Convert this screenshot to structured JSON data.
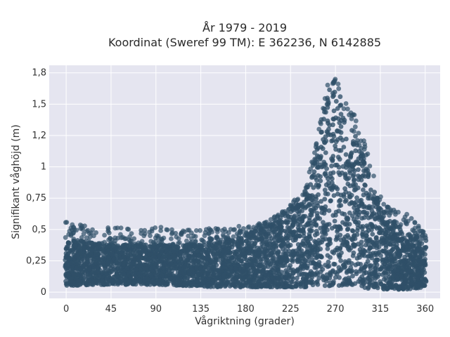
{
  "chart_data": {
    "type": "scatter",
    "title": "År 1979 - 2019",
    "subtitle": "Koordinat (Sweref 99 TM): E 362236, N 6142885",
    "xlabel": "Vågriktning (grader)",
    "ylabel": "Signifikant våghöjd (m)",
    "xlim": [
      -17,
      375
    ],
    "ylim": [
      -0.05,
      1.81
    ],
    "x_ticks": [
      0,
      45,
      90,
      135,
      180,
      225,
      270,
      315,
      360
    ],
    "x_tick_labels": [
      "0",
      "45",
      "90",
      "135",
      "180",
      "225",
      "270",
      "315",
      "360"
    ],
    "y_ticks": [
      0,
      0.25,
      0.5,
      0.75,
      1.0,
      1.25,
      1.5,
      1.75
    ],
    "y_tick_labels": [
      "0",
      "0,25",
      "0,5",
      "0,75",
      "1",
      "1,2",
      "1,5",
      "1,8"
    ],
    "grid": true,
    "legend": "none",
    "marker_color": "#2f5068",
    "envelope": {
      "x": [
        0,
        30,
        60,
        90,
        120,
        150,
        180,
        200,
        220,
        240,
        250,
        258,
        262,
        266,
        270,
        274,
        280,
        290,
        300,
        310,
        320,
        330,
        340,
        350,
        360
      ],
      "y_min": [
        0.05,
        0.06,
        0.06,
        0.06,
        0.05,
        0.04,
        0.04,
        0.04,
        0.04,
        0.04,
        0.05,
        0.05,
        0.05,
        0.05,
        0.05,
        0.05,
        0.04,
        0.04,
        0.03,
        0.03,
        0.02,
        0.02,
        0.02,
        0.03,
        0.04
      ],
      "y_typical_max": [
        0.42,
        0.4,
        0.38,
        0.38,
        0.38,
        0.4,
        0.46,
        0.52,
        0.62,
        0.8,
        1.1,
        1.45,
        1.58,
        1.65,
        1.66,
        1.6,
        1.38,
        1.25,
        1.05,
        0.78,
        0.65,
        0.55,
        0.48,
        0.45,
        0.44
      ],
      "y_outlier_max": [
        0.56,
        0.53,
        0.52,
        0.53,
        0.5,
        0.51,
        0.53,
        0.56,
        0.66,
        0.85,
        1.15,
        1.5,
        1.65,
        1.71,
        1.7,
        1.66,
        1.55,
        1.4,
        1.18,
        0.88,
        0.7,
        0.65,
        0.63,
        0.58,
        0.48
      ]
    }
  }
}
